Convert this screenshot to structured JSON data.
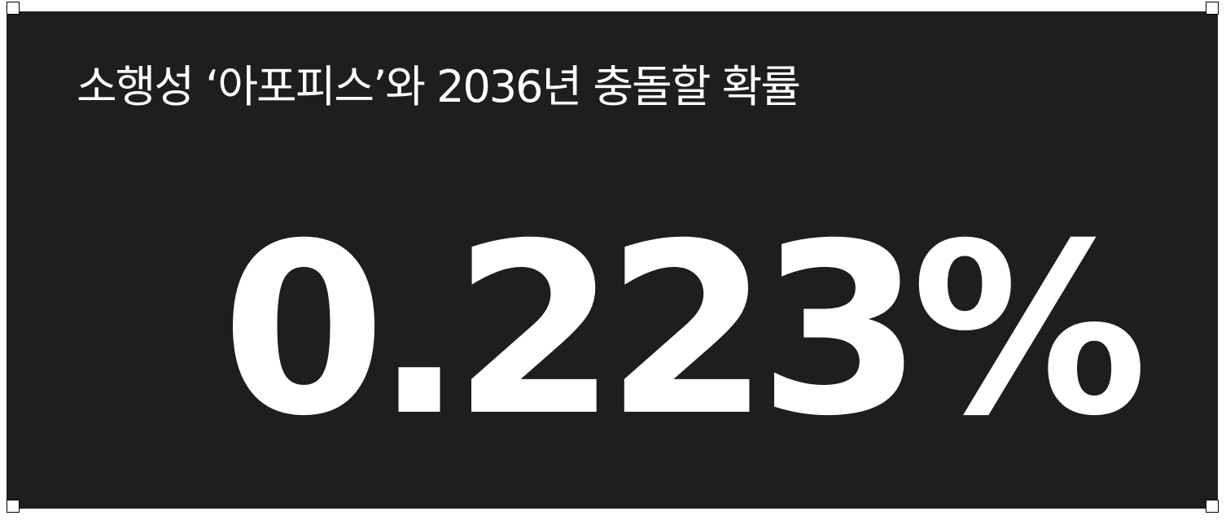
{
  "card": {
    "headline": "소행성 ‘아포피스’와 2036년 충돌할 확률",
    "value": "0.223%",
    "background_color": "#1e1e1e",
    "text_color": "#ffffff"
  },
  "selection": {
    "handles": [
      "top-left",
      "top-right",
      "bottom-left",
      "bottom-right"
    ]
  }
}
